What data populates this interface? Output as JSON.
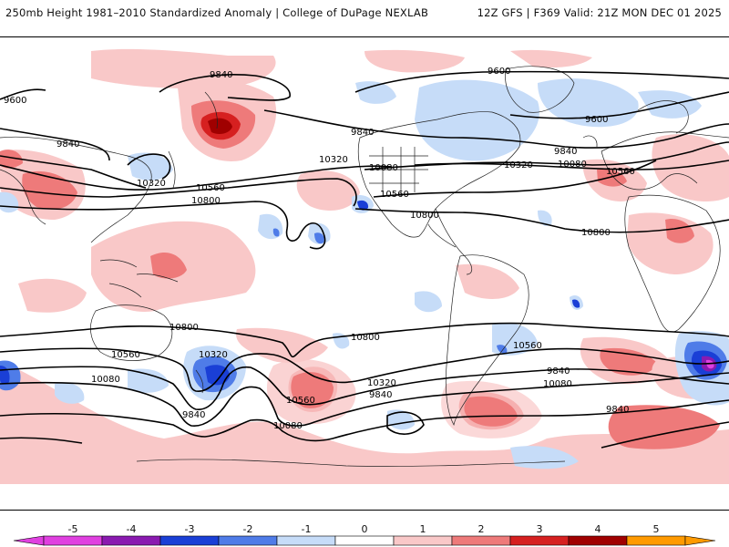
{
  "header": {
    "left_title": "250mb Height 1981–2010 Standardized Anomaly | College of DuPage NEXLAB",
    "right_title": "12Z GFS | F369 Valid: 21Z MON DEC 01 2025"
  },
  "contour_labels": [
    "9840",
    "9600",
    "9600",
    "9600",
    "9840",
    "9840",
    "9840",
    "9840",
    "10320",
    "10320",
    "10320",
    "10560",
    "10560",
    "10560",
    "10800",
    "10800",
    "10080",
    "10080",
    "10800",
    "10800",
    "10080",
    "10560",
    "10800",
    "10560",
    "10320",
    "10320",
    "10560",
    "10080",
    "10080",
    "9840",
    "9840",
    "9840"
  ],
  "colorbar": {
    "ticks": [
      "-5",
      "-4",
      "-3",
      "-2",
      "-1",
      "0",
      "1",
      "2",
      "3",
      "4",
      "5"
    ],
    "colors": {
      "neg5": "#e040e0",
      "neg4": "#8a1ab0",
      "neg3": "#1a3fd6",
      "neg2": "#4f7ce8",
      "neg1": "#c6dcf8",
      "zero": "#ffffff",
      "pos1": "#f9c8c8",
      "pos2": "#ee7a7a",
      "pos3": "#d62020",
      "pos4": "#a00000",
      "pos5": "#ff9a00"
    }
  }
}
